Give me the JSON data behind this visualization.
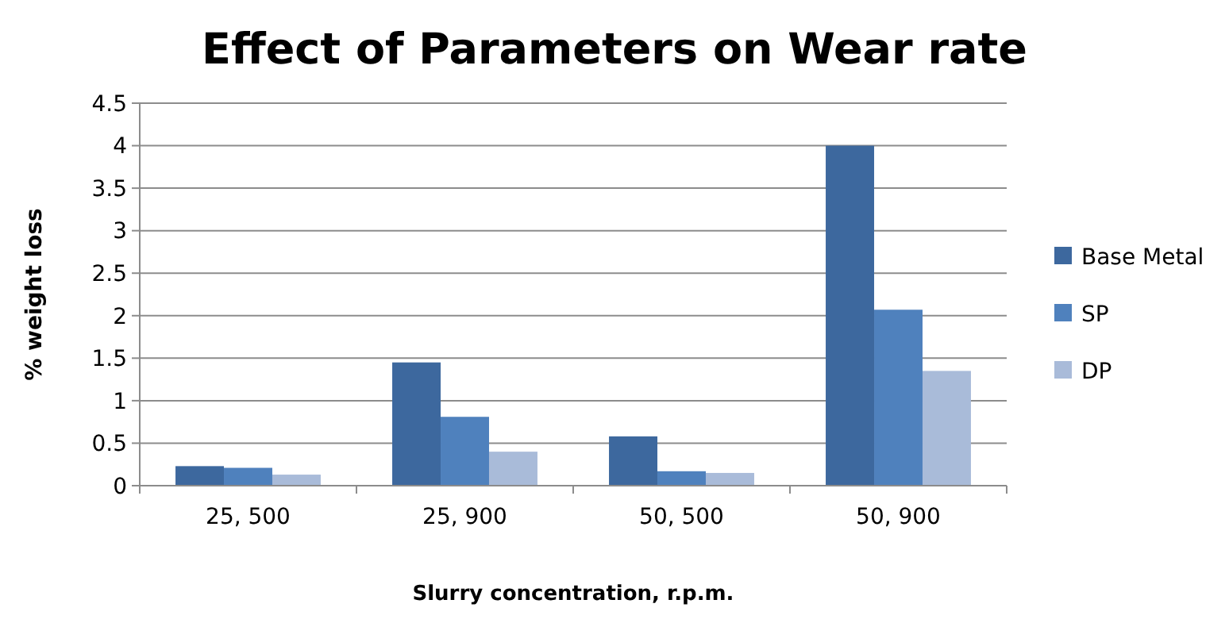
{
  "chart_data": {
    "type": "bar",
    "title": "Effect of Parameters on Wear rate",
    "xlabel": "Slurry concentration, r.p.m.",
    "ylabel": "% weight loss",
    "categories": [
      "25, 500",
      "25, 900",
      "50, 500",
      "50, 900"
    ],
    "series": [
      {
        "name": "Base Metal",
        "color": "#3d689e",
        "values": [
          0.23,
          1.45,
          0.58,
          4.0
        ]
      },
      {
        "name": "SP",
        "color": "#4f81bd",
        "values": [
          0.21,
          0.81,
          0.17,
          2.07
        ]
      },
      {
        "name": "DP",
        "color": "#a9bbd9",
        "values": [
          0.13,
          0.4,
          0.15,
          1.35
        ]
      }
    ],
    "ylim": [
      0,
      4.5
    ],
    "yticks": [
      0,
      0.5,
      1,
      1.5,
      2,
      2.5,
      3,
      3.5,
      4,
      4.5
    ],
    "grid": "y",
    "legend": "right"
  }
}
